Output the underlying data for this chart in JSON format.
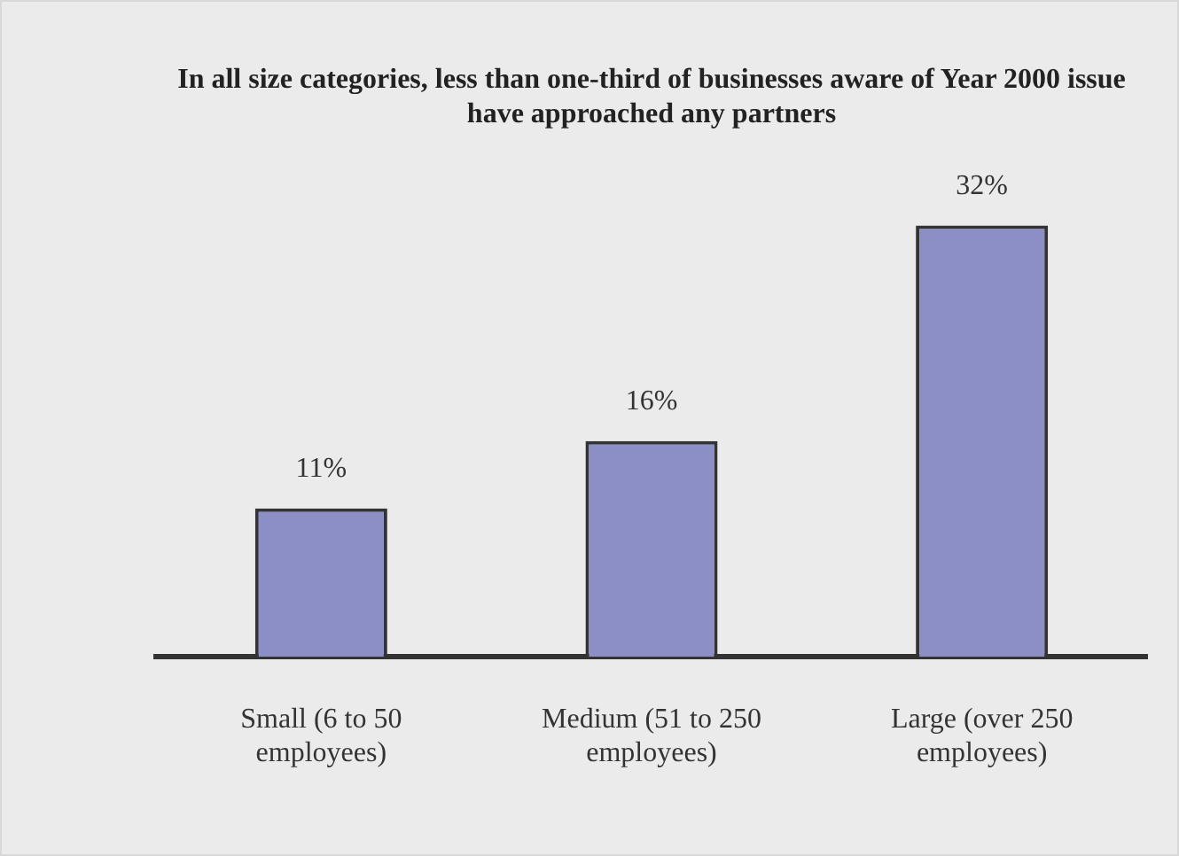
{
  "chart_data": {
    "type": "bar",
    "title": "In all size categories, less than one-third of businesses aware of Year 2000 issue have approached any partners",
    "categories": [
      "Small (6 to 50 employees)",
      "Medium (51 to 250 employees)",
      "Large (over 250 employees)"
    ],
    "values": [
      11,
      16,
      32
    ],
    "value_labels": [
      "11%",
      "16%",
      "32%"
    ],
    "color": "#8b8fc6",
    "grid": false,
    "legend": false,
    "tick_labels": "x"
  }
}
